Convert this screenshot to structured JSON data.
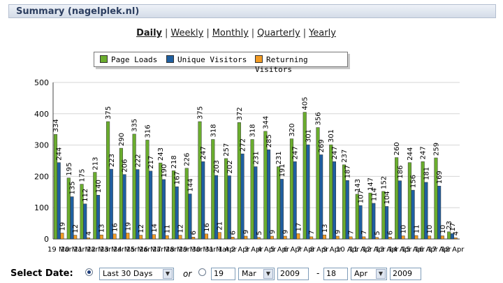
{
  "header": {
    "title": "Summary (nagelplek.nl)"
  },
  "tabs": [
    {
      "label": "Daily",
      "active": true
    },
    {
      "label": "Weekly",
      "active": false
    },
    {
      "label": "Monthly",
      "active": false
    },
    {
      "label": "Quarterly",
      "active": false
    },
    {
      "label": "Yearly",
      "active": false
    }
  ],
  "legend": [
    {
      "label": "Page Loads",
      "color": "#6aad2e"
    },
    {
      "label": "Unique Visitors",
      "color": "#1f5fa0"
    },
    {
      "label": "Returning Visitors",
      "color": "#f29b24"
    }
  ],
  "chart_data": {
    "type": "bar",
    "ylim": [
      0,
      500
    ],
    "yticks": [
      0,
      100,
      200,
      300,
      400,
      500
    ],
    "grid": true,
    "legend_position": "top",
    "categories": [
      "19 Mar",
      "20 Mar",
      "21 Mar",
      "22 Mar",
      "23 Mar",
      "24 Mar",
      "25 Mar",
      "26 Mar",
      "27 Mar",
      "28 Mar",
      "29 Mar",
      "30 Mar",
      "31 Mar",
      "1 Apr",
      "2 Apr",
      "3 Apr",
      "4 Apr",
      "5 Apr",
      "6 Apr",
      "7 Apr",
      "8 Apr",
      "9 Apr",
      "10 Apr",
      "11 Apr",
      "12 Apr",
      "13 Apr",
      "14 Apr",
      "15 Apr",
      "16 Apr",
      "17 Apr",
      "18 Apr"
    ],
    "series": [
      {
        "name": "Page Loads",
        "color": "#6aad2e",
        "values": [
          334,
          195,
          175,
          213,
          375,
          290,
          335,
          316,
          243,
          218,
          226,
          375,
          318,
          257,
          372,
          318,
          344,
          231,
          320,
          405,
          356,
          301,
          237,
          143,
          147,
          152,
          260,
          244,
          247,
          259,
          23
        ]
      },
      {
        "name": "Unique Visitors",
        "color": "#1f5fa0",
        "values": [
          244,
          135,
          112,
          140,
          223,
          206,
          222,
          217,
          190,
          167,
          144,
          247,
          203,
          202,
          272,
          231,
          285,
          191,
          247,
          301,
          269,
          247,
          187,
          107,
          114,
          104,
          186,
          156,
          181,
          169,
          17
        ]
      },
      {
        "name": "Returning Visitors",
        "color": "#f29b24",
        "values": [
          19,
          12,
          4,
          13,
          16,
          19,
          12,
          14,
          11,
          12,
          6,
          16,
          21,
          6,
          9,
          5,
          9,
          9,
          17,
          7,
          13,
          9,
          7,
          7,
          5,
          6,
          10,
          11,
          10,
          10,
          4
        ]
      }
    ]
  },
  "controls": {
    "label": "Select Date:",
    "range_select": "Last 30 Days",
    "or_text": "or",
    "from_day": "19",
    "from_month": "Mar",
    "from_year": "2009",
    "dash": "-",
    "to_day": "18",
    "to_month": "Apr",
    "to_year": "2009",
    "arrow": "▼"
  }
}
